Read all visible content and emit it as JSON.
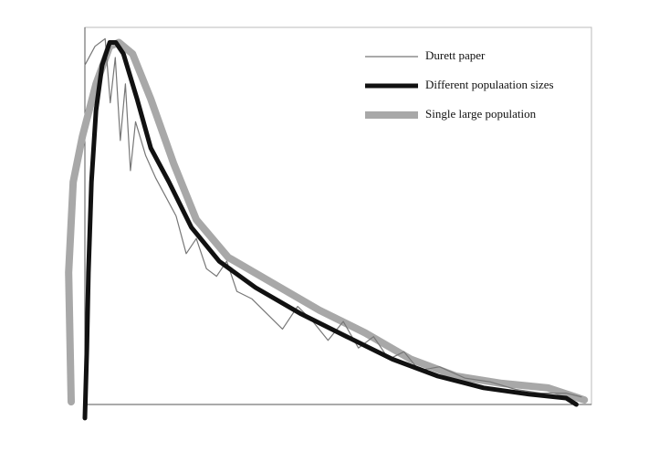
{
  "chart_data": {
    "type": "line",
    "xlim": [
      0,
      100
    ],
    "ylim": [
      0,
      100
    ],
    "legend": "upper right",
    "series": [
      {
        "name": "Single large population",
        "color": "#a8a8a8",
        "width": 8,
        "x": [
          -2.7,
          -3.2,
          -2.3,
          -0.5,
          2.2,
          4.9,
          6.7,
          9.4,
          13,
          17.5,
          22,
          28.3,
          37.3,
          46.3,
          55.3,
          64.3,
          73.3,
          82.3,
          91.4,
          98.6
        ],
        "values": [
          0.7,
          35,
          59,
          71,
          85,
          95,
          96,
          93,
          81,
          64,
          49,
          39,
          32,
          25,
          19,
          12,
          7.5,
          5.6,
          4.4,
          1.2
        ]
      },
      {
        "name": "Durett paper",
        "color": "#777777",
        "width": 1.2,
        "x": [
          0,
          2,
          4,
          5,
          6,
          7,
          8,
          9,
          10,
          12,
          14,
          16,
          18,
          20,
          22,
          24,
          26,
          28,
          30,
          33,
          36,
          39,
          42,
          45,
          48,
          51,
          54,
          57,
          60,
          63,
          66,
          70,
          75,
          80,
          85,
          90,
          95,
          98
        ],
        "values": [
          90,
          95,
          97,
          80,
          92,
          70,
          85,
          62,
          75,
          66,
          60,
          55,
          50,
          40,
          44,
          36,
          34,
          38,
          30,
          28,
          24,
          20,
          26,
          22,
          17,
          22,
          15,
          18,
          12,
          14,
          9,
          10,
          7,
          6,
          4,
          3,
          3,
          2
        ]
      },
      {
        "name": "Different populaation sizes",
        "color": "#111111",
        "width": 5,
        "x": [
          0,
          0.4,
          0.7,
          1.3,
          2.2,
          3.4,
          4.9,
          6.1,
          7.6,
          10.3,
          13,
          16.6,
          21,
          26.5,
          33.7,
          42.7,
          51.7,
          60.7,
          69.7,
          78.7,
          87.7,
          95,
          97
        ],
        "values": [
          -3.6,
          15,
          35,
          59,
          78,
          90,
          96,
          96,
          93,
          81,
          68,
          59,
          47,
          38,
          31,
          24,
          18,
          12,
          7.5,
          4.4,
          2.7,
          1.7,
          0
        ]
      }
    ]
  }
}
